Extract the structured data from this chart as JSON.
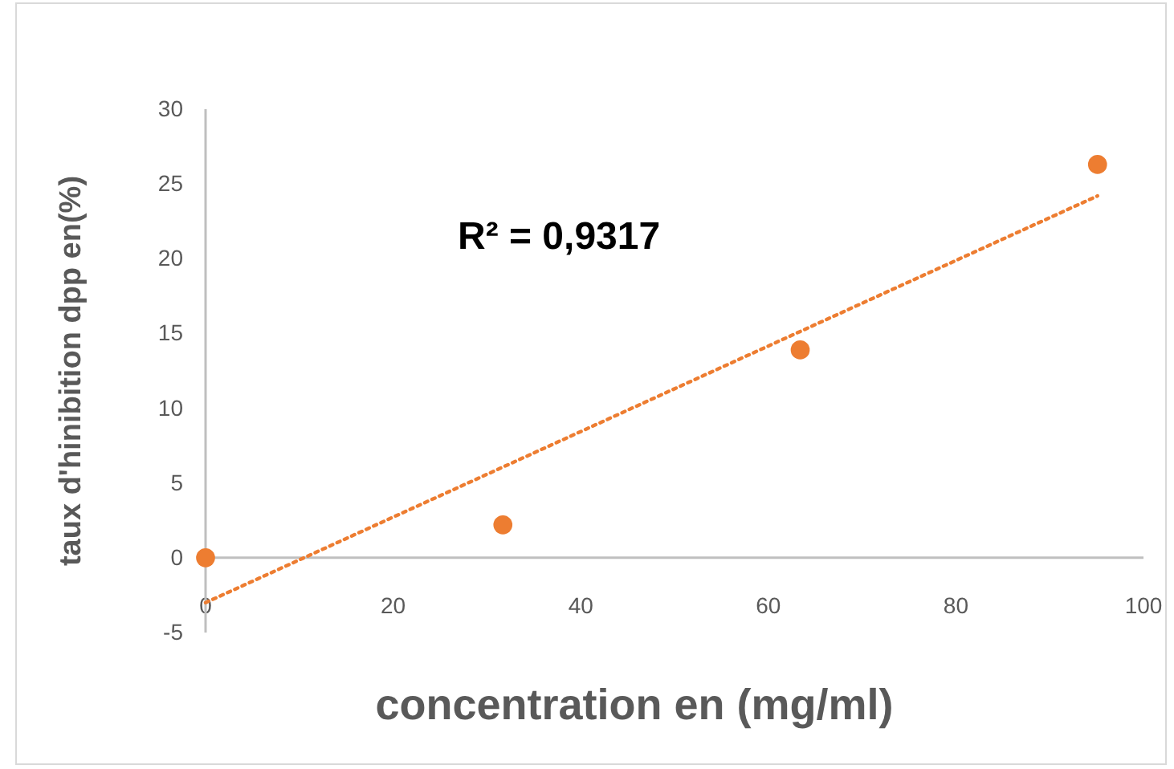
{
  "chart_data": {
    "type": "scatter",
    "xlabel": "concentration en (mg/ml)",
    "ylabel": "taux d'hinibition dpp en(%)",
    "xlim": [
      0,
      100
    ],
    "xticks": [
      0,
      20,
      40,
      60,
      80,
      100
    ],
    "ylim": [
      -5,
      30
    ],
    "yticks": [
      -5,
      0,
      5,
      10,
      15,
      20,
      25,
      30
    ],
    "grid": false,
    "legend": false,
    "annotations": [
      "R² = 0,9317"
    ],
    "series": [
      {
        "marker": "circle",
        "color": "#ed7d31",
        "x": [
          0,
          31.7,
          63.4,
          95.1
        ],
        "values": [
          0,
          2.2,
          13.9,
          26.3
        ]
      },
      {
        "type": "line",
        "marker": "none",
        "color": "#ed7d31",
        "line_style": "dotted",
        "x": [
          0,
          95.1
        ],
        "values": [
          -3.0,
          24.2
        ]
      }
    ]
  }
}
